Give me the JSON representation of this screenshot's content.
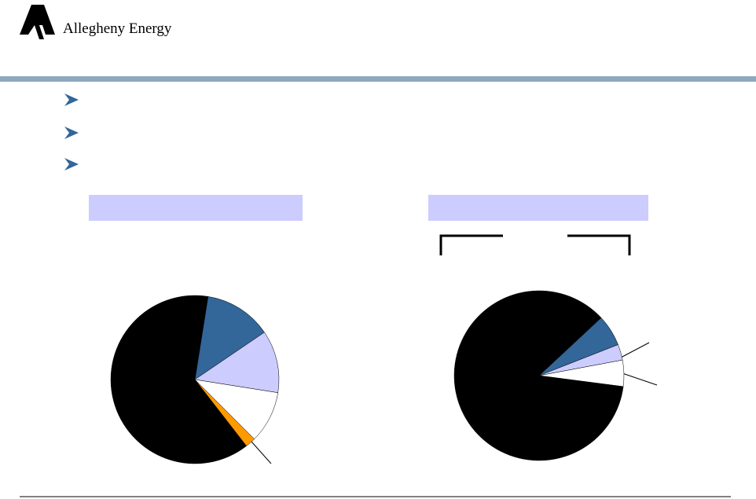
{
  "header": {
    "company": "Allegheny Energy"
  },
  "chart_data": [
    {
      "type": "pie",
      "start_angle": 9,
      "values": [
        13,
        12,
        10,
        2,
        63
      ],
      "colors": [
        "#336699",
        "#ccccff",
        "#ffffff",
        "#ff9900",
        "#000000"
      ]
    },
    {
      "type": "pie",
      "start_angle": 47,
      "values": [
        6,
        3,
        5,
        86
      ],
      "colors": [
        "#336699",
        "#ccccff",
        "#ffffff",
        "#000000"
      ]
    }
  ]
}
